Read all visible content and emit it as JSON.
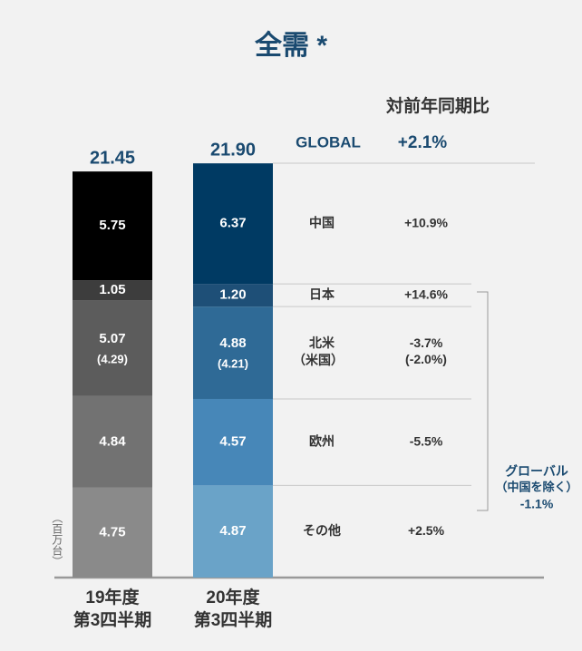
{
  "chart_data": {
    "type": "bar",
    "stacked": true,
    "title": "全需 *",
    "unit_label": "（百万台）",
    "change_header": "対前年同期比",
    "categories": [
      "19年度\n第3四半期",
      "20年度\n第3四半期"
    ],
    "totals": [
      21.45,
      21.9
    ],
    "total_labels": [
      "21.45",
      "21.90"
    ],
    "global": {
      "name": "GLOBAL",
      "change": 2.1,
      "change_label": "+2.1%"
    },
    "series": [
      {
        "name": "その他",
        "values": [
          4.75,
          4.87
        ],
        "colors": [
          "#8a8a8a",
          "#6aa3c8"
        ],
        "change": 2.5,
        "change_label": "+2.5%"
      },
      {
        "name": "欧州",
        "values": [
          4.84,
          4.57
        ],
        "colors": [
          "#727272",
          "#4787b8"
        ],
        "change": -5.5,
        "change_label": "-5.5%"
      },
      {
        "name": "北米",
        "sub_name": "（米国）",
        "values": [
          5.07,
          4.88
        ],
        "colors": [
          "#5c5c5c",
          "#2f6a96"
        ],
        "sub_values": [
          4.29,
          4.21
        ],
        "sub_value_labels": [
          "(4.29)",
          "(4.21)"
        ],
        "change": -3.7,
        "change_label": "-3.7%",
        "sub_change": -2.0,
        "sub_change_label": "(-2.0%)"
      },
      {
        "name": "日本",
        "values": [
          1.05,
          1.2
        ],
        "value_labels": [
          "1.05",
          "1.20"
        ],
        "colors": [
          "#3d3d3d",
          "#1e4f77"
        ],
        "change": 14.6,
        "change_label": "+14.6%"
      },
      {
        "name": "中国",
        "values": [
          5.75,
          6.37
        ],
        "colors": [
          "#000000",
          "#003a63"
        ],
        "change": 10.9,
        "change_label": "+10.9%"
      }
    ],
    "bracket": {
      "label": "グローバル",
      "sublabel": "（中国を除く）",
      "change": -1.1,
      "change_label": "-1.1%"
    }
  }
}
